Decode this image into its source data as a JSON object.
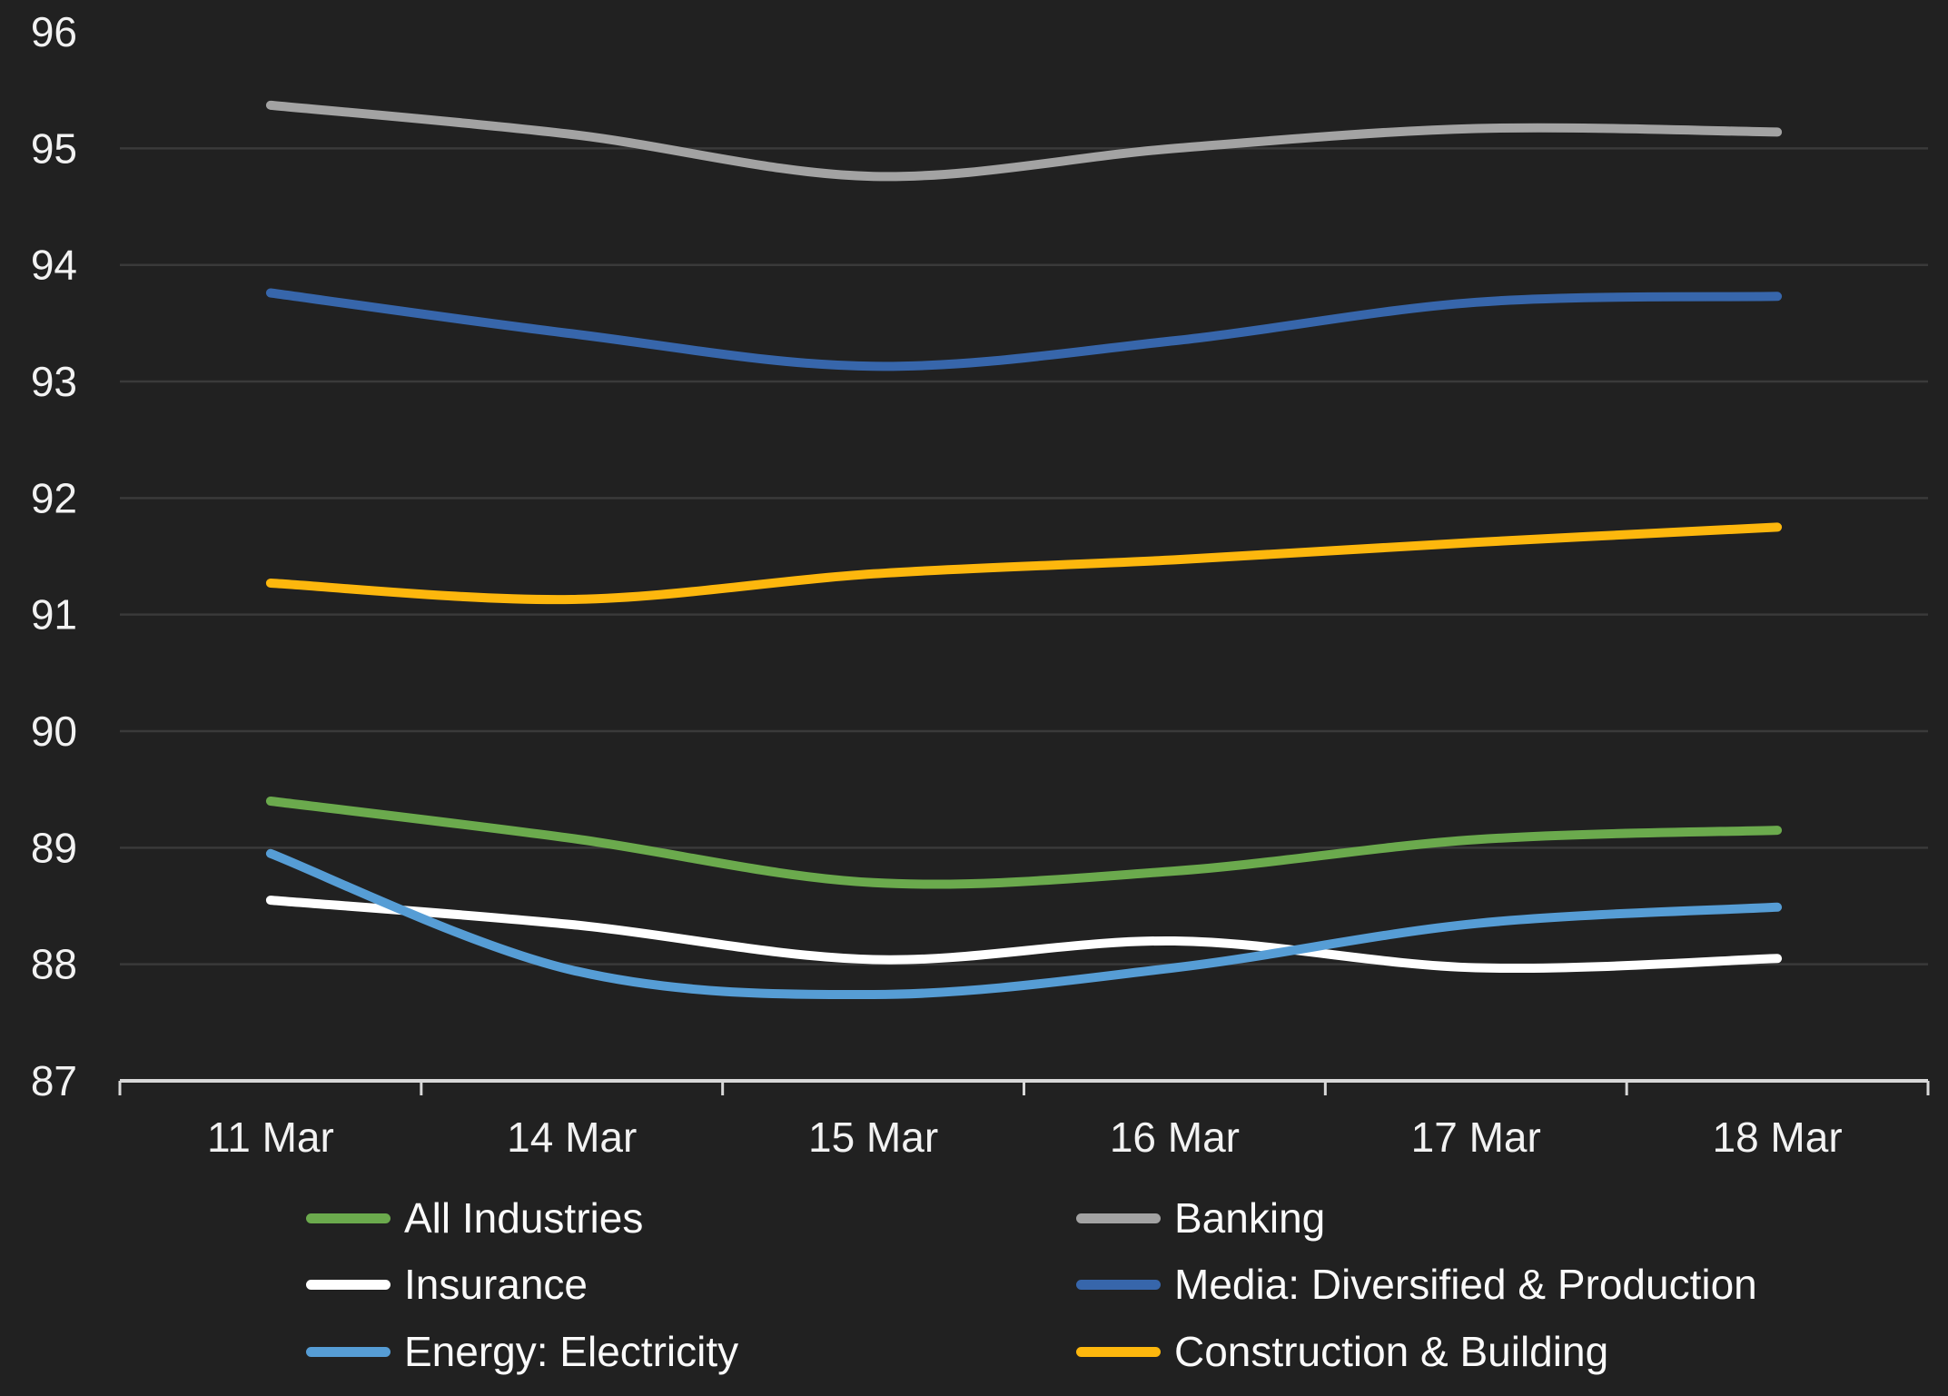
{
  "chart": {
    "background_color": "#212121",
    "gridline_color": "#3a3a3a",
    "axis_color": "#d8d8d8",
    "text_color": "#f2f2f2"
  },
  "chart_data": {
    "type": "line",
    "title": "",
    "xlabel": "",
    "ylabel": "",
    "categories": [
      "11 Mar",
      "14 Mar",
      "15 Mar",
      "16 Mar",
      "17 Mar",
      "18 Mar"
    ],
    "series": [
      {
        "name": "All Industries",
        "color": "#6baa4d",
        "values": [
          89.4,
          89.08,
          88.7,
          88.8,
          89.07,
          89.15
        ]
      },
      {
        "name": "Banking",
        "color": "#a3a3a3",
        "values": [
          95.37,
          95.12,
          94.76,
          95.0,
          95.17,
          95.14
        ]
      },
      {
        "name": "Insurance",
        "color": "#ffffff",
        "values": [
          88.55,
          88.34,
          88.04,
          88.2,
          87.97,
          88.05
        ]
      },
      {
        "name": "Media: Diversified & Production",
        "color": "#3766ab",
        "values": [
          93.76,
          93.41,
          93.13,
          93.35,
          93.68,
          93.73
        ]
      },
      {
        "name": "Energy: Electricity",
        "color": "#569dd5",
        "values": [
          88.95,
          87.95,
          87.74,
          87.97,
          88.35,
          88.49
        ]
      },
      {
        "name": "Construction & Building",
        "color": "#fdb70d",
        "values": [
          91.27,
          91.13,
          91.35,
          91.47,
          91.62,
          91.75
        ]
      }
    ],
    "yaxis": {
      "min": 87,
      "max": 96,
      "tick_step": 1,
      "tick_labels": [
        "87",
        "88",
        "89",
        "90",
        "91",
        "92",
        "93",
        "94",
        "95",
        "96"
      ],
      "gridline_values": [
        88,
        89,
        90,
        91,
        92,
        93,
        94,
        95
      ]
    },
    "xaxis": {
      "tick_labels": [
        "11 Mar",
        "14 Mar",
        "15 Mar",
        "16 Mar",
        "17 Mar",
        "18 Mar"
      ]
    },
    "legend": {
      "position": "bottom",
      "columns": 2,
      "grid_on": true,
      "smooth_lines": true
    }
  }
}
